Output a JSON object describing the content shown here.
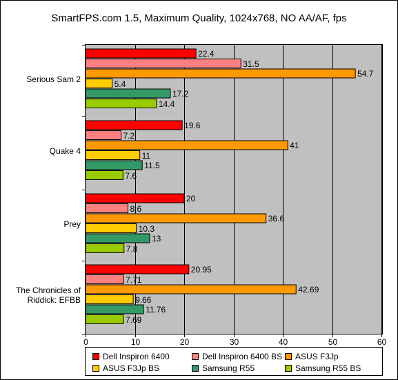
{
  "chart_data": {
    "type": "bar",
    "orientation": "horizontal",
    "title": "SmartFPS.com 1.5, Maximum Quality, 1024x768, NO AA/AF, fps",
    "categories": [
      "Serious Sam 2",
      "Quake 4",
      "Prey",
      "The Chronicles of Riddick: EFBB"
    ],
    "category_lines": [
      [
        "Serious Sam 2"
      ],
      [
        "Quake 4"
      ],
      [
        "Prey"
      ],
      [
        "The Chronicles of",
        "Riddick: EFBB"
      ]
    ],
    "series": [
      {
        "name": "Dell Inspiron 6400",
        "color": "#ff0000",
        "values": [
          22.4,
          19.6,
          20,
          20.95
        ],
        "labels": [
          "22.4",
          "19.6",
          "20",
          "20.95"
        ]
      },
      {
        "name": "Dell Inspiron 6400 BS",
        "color": "#ff8080",
        "values": [
          31.5,
          7.2,
          8.6,
          7.71
        ],
        "labels": [
          "31.5",
          "7.2",
          "8.6",
          "7.71"
        ]
      },
      {
        "name": "ASUS F3Jp",
        "color": "#ff9900",
        "values": [
          54.7,
          41,
          36.6,
          42.69
        ],
        "labels": [
          "54.7",
          "41",
          "36.6",
          "42.69"
        ]
      },
      {
        "name": "ASUS F3Jp BS",
        "color": "#ffcc00",
        "values": [
          5.4,
          11,
          10.3,
          9.66
        ],
        "labels": [
          "5.4",
          "11",
          "10.3",
          "9.66"
        ]
      },
      {
        "name": "Samsung R55",
        "color": "#339966",
        "values": [
          17.2,
          11.5,
          13,
          11.76
        ],
        "labels": [
          "17.2",
          "11.5",
          "13",
          "11.76"
        ]
      },
      {
        "name": "Samsung R55 BS",
        "color": "#99cc00",
        "values": [
          14.4,
          7.6,
          7.8,
          7.69
        ],
        "labels": [
          "14.4",
          "7.6",
          "7.8",
          "7.69"
        ]
      }
    ],
    "xlim": [
      0,
      60
    ],
    "xticks": [
      0,
      10,
      20,
      30,
      40,
      50,
      60
    ],
    "xtick_labels": [
      "0",
      "10",
      "20",
      "30",
      "40",
      "50",
      "60"
    ],
    "grid": "vertical",
    "legend_position": "bottom",
    "plot_background": "#c0c0c0"
  }
}
